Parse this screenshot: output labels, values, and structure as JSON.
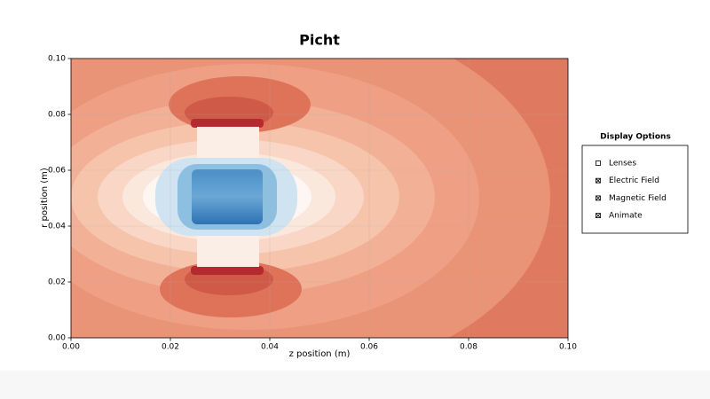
{
  "chart_data": {
    "type": "contour",
    "title": "Picht",
    "x_label": "z position (m)",
    "y_label": "r position (m)",
    "xlim": [
      0,
      0.1
    ],
    "ylim": [
      0,
      0.1
    ],
    "xticks": [
      {
        "value": 0,
        "label": "0.00"
      },
      {
        "value": 0.02,
        "label": "0.02"
      },
      {
        "value": 0.04,
        "label": "0.04"
      },
      {
        "value": 0.06,
        "label": "0.06"
      },
      {
        "value": 0.08,
        "label": "0.08"
      },
      {
        "value": 0.1,
        "label": "0.10"
      }
    ],
    "yticks": [
      {
        "value": 0,
        "label": "0.00"
      },
      {
        "value": 0.02,
        "label": "0.02"
      },
      {
        "value": 0.04,
        "label": "0.04"
      },
      {
        "value": 0.06,
        "label": "0.06"
      },
      {
        "value": 0.08,
        "label": "0.08"
      },
      {
        "value": 0.1,
        "label": "0.10"
      }
    ],
    "grid": true
  },
  "options_panel": {
    "title": "Display Options",
    "options": [
      {
        "label": "Lenses",
        "checked": false
      },
      {
        "label": "Electric Field",
        "checked": true
      },
      {
        "label": "Magnetic Field",
        "checked": true
      },
      {
        "label": "Animate",
        "checked": true
      }
    ]
  }
}
